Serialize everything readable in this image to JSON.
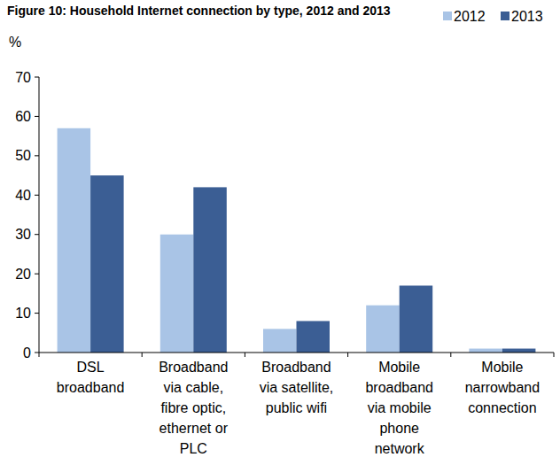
{
  "chart_data": {
    "type": "bar",
    "title": "Figure 10: Household Internet connection by type, 2012 and 2013",
    "ylabel": "%",
    "categories": [
      "DSL\nbroadband",
      "Broadband\nvia cable,\nfibre optic,\nethernet or\nPLC",
      "Broadband\nvia satellite,\npublic wifi",
      "Mobile\nbroadband\nvia mobile\nphone\nnetwork",
      "Mobile\nnarrowband\nconnection"
    ],
    "series": [
      {
        "name": "2012",
        "color": "#a9c4e6",
        "values": [
          57,
          30,
          6,
          12,
          1
        ]
      },
      {
        "name": "2013",
        "color": "#3b5e94",
        "values": [
          45,
          42,
          8,
          17,
          1
        ]
      }
    ],
    "ylim": [
      0,
      70
    ],
    "yticks": [
      0,
      10,
      20,
      30,
      40,
      50,
      60,
      70
    ],
    "grid": false,
    "legend": "top-right"
  }
}
